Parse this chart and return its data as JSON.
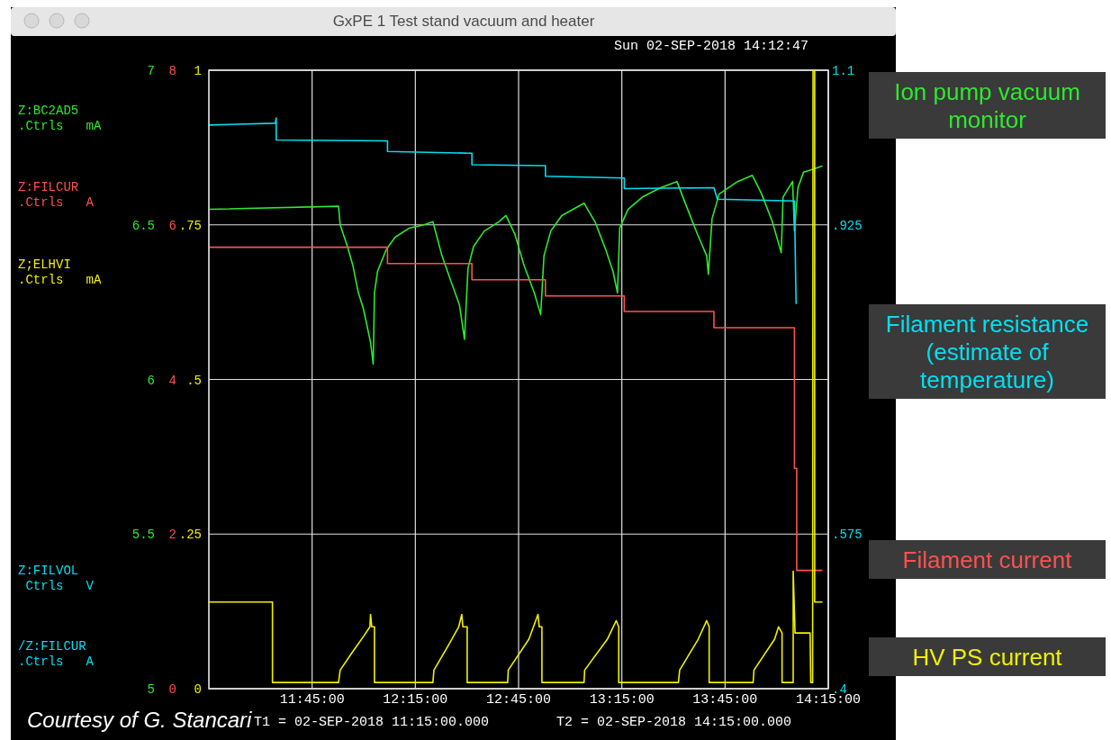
{
  "chart_data": [
    {
      "type": "line",
      "title": "GxPE 1 Test stand vacuum and heater",
      "xlim": [
        11.25,
        14.25
      ],
      "xticks": [
        {
          "value": 11.75,
          "label": "11:45:00"
        },
        {
          "value": 12.25,
          "label": "12:15:00"
        },
        {
          "value": 12.75,
          "label": "12:45:00"
        },
        {
          "value": 13.25,
          "label": "13:15:00"
        },
        {
          "value": 13.75,
          "label": "13:45:00"
        },
        {
          "value": 14.25,
          "label": "14:15:00"
        }
      ],
      "ylim": [
        5,
        7
      ],
      "yticks": [
        5,
        5.5,
        6,
        6.5,
        7
      ],
      "ylabel": "Z:BC2AD5\n.Ctrls   mA",
      "y2lim": [
        0.4,
        1.1
      ],
      "y2ticks": [
        {
          "value": 0.4,
          "label": ".4"
        },
        {
          "value": 0.575,
          "label": ".575"
        },
        {
          "value": 0.925,
          "label": ".925"
        },
        {
          "value": 1.1,
          "label": "1.1"
        }
      ],
      "y2label": "Z:FILVOL\n Ctrls   V\n/Z:FILCUR\n.Ctrls   A",
      "y3lim": [
        0,
        8
      ],
      "y3ticks": [
        0,
        2,
        4,
        6,
        8
      ],
      "y3label": "Z:FILCUR\n.Ctrls   A",
      "grid": true,
      "legend": "right",
      "annotations": [
        "Sun 02-SEP-2018 14:12:47",
        "T1 = 02-SEP-2018 11:15:00.000",
        "T2 = 02-SEP-2018 14:15:00.000",
        "Courtesy of G. Stancari"
      ],
      "series": [
        {
          "name": "Ion pump vacuum monitor",
          "color": "#2ee82e",
          "x": [
            11.25,
            11.878,
            11.886,
            11.921,
            11.947,
            11.974,
            11.998,
            12.033,
            12.046,
            12.052,
            12.067,
            12.109,
            12.152,
            12.222,
            12.292,
            12.335,
            12.379,
            12.421,
            12.464,
            12.488,
            12.505,
            12.532,
            12.584,
            12.654,
            12.689,
            12.732,
            12.776,
            12.826,
            12.857,
            12.873,
            12.906,
            12.959,
            13.014,
            13.067,
            13.12,
            13.172,
            13.207,
            13.229,
            13.24,
            13.28,
            13.35,
            13.438,
            13.517,
            13.563,
            13.616,
            13.661,
            13.669,
            13.687,
            13.722,
            13.811,
            13.882,
            13.927,
            13.979,
            14.022,
            14.031,
            14.077,
            14.086,
            14.103,
            14.13,
            14.176,
            14.219
          ],
          "values": [
            6.55,
            6.56,
            6.5,
            6.43,
            6.37,
            6.28,
            6.23,
            6.12,
            6.05,
            6.28,
            6.35,
            6.42,
            6.46,
            6.49,
            6.5,
            6.51,
            6.4,
            6.32,
            6.24,
            6.13,
            6.36,
            6.43,
            6.48,
            6.51,
            6.53,
            6.47,
            6.37,
            6.28,
            6.21,
            6.4,
            6.48,
            6.53,
            6.55,
            6.57,
            6.51,
            6.42,
            6.35,
            6.28,
            6.49,
            6.55,
            6.59,
            6.62,
            6.64,
            6.56,
            6.47,
            6.4,
            6.34,
            6.52,
            6.6,
            6.64,
            6.66,
            6.6,
            6.51,
            6.41,
            6.59,
            6.64,
            6.48,
            6.62,
            6.67,
            6.68,
            6.69
          ]
        },
        {
          "name": "Filament resistance (estimate of temperature)",
          "color": "#00e0f0",
          "axis": "y2",
          "x": [
            11.25,
            11.572,
            11.576,
            11.576,
            12.115,
            12.115,
            12.524,
            12.524,
            12.88,
            12.88,
            13.262,
            13.262,
            13.696,
            13.713,
            14.086,
            14.094
          ],
          "values": [
            1.038,
            1.04,
            1.046,
            1.021,
            1.02,
            1.008,
            1.006,
            0.993,
            0.992,
            0.98,
            0.978,
            0.966,
            0.967,
            0.954,
            0.952,
            0.836
          ]
        },
        {
          "name": "Filament current",
          "color": "#ff5050",
          "axis": "y3",
          "x": [
            11.25,
            12.115,
            12.115,
            12.524,
            12.524,
            12.88,
            12.88,
            13.262,
            13.262,
            13.696,
            13.696,
            14.086,
            14.086,
            14.097,
            14.097,
            14.219
          ],
          "values": [
            5.71,
            5.71,
            5.5,
            5.5,
            5.29,
            5.29,
            5.08,
            5.08,
            4.88,
            4.88,
            4.67,
            4.67,
            2.85,
            2.85,
            1.53,
            1.53
          ]
        }
      ]
    },
    {
      "type": "line",
      "xlim": [
        11.25,
        14.25
      ],
      "ylim": [
        0,
        1
      ],
      "yticks": [
        0,
        {
          "value": 0.25,
          "label": ".25"
        },
        {
          "value": 0.5,
          "label": ".5"
        },
        {
          "value": 0.75,
          "label": ".75"
        },
        1
      ],
      "ylabel": "Z;ELHVI\n.Ctrls   mA",
      "tick_labels": "y",
      "legend": "right",
      "series": [
        {
          "name": "HV PS current",
          "color": "#f0f000",
          "x": [
            11.25,
            11.558,
            11.558,
            11.878,
            11.886,
            11.947,
            12.0,
            12.03,
            12.033,
            12.039,
            12.052,
            12.052,
            12.335,
            12.34,
            12.41,
            12.46,
            12.475,
            12.48,
            12.501,
            12.501,
            12.697,
            12.7,
            12.8,
            12.844,
            12.85,
            12.863,
            12.863,
            13.067,
            13.07,
            13.18,
            13.223,
            13.235,
            13.235,
            13.524,
            13.53,
            13.62,
            13.661,
            13.673,
            13.673,
            13.886,
            13.89,
            13.99,
            14.009,
            14.026,
            14.026,
            14.08,
            14.08,
            14.089,
            14.162,
            14.165,
            14.174,
            14.176,
            14.184,
            14.184,
            14.219
          ],
          "values": [
            0.14,
            0.14,
            0.01,
            0.01,
            0.03,
            0.06,
            0.085,
            0.1,
            0.12,
            0.1,
            0.1,
            0.01,
            0.01,
            0.03,
            0.07,
            0.1,
            0.12,
            0.1,
            0.1,
            0.01,
            0.01,
            0.03,
            0.08,
            0.12,
            0.1,
            0.1,
            0.01,
            0.01,
            0.03,
            0.08,
            0.11,
            0.1,
            0.01,
            0.01,
            0.03,
            0.08,
            0.11,
            0.1,
            0.01,
            0.01,
            0.03,
            0.08,
            0.1,
            0.09,
            0.01,
            0.01,
            0.19,
            0.09,
            0.09,
            0.01,
            0.01,
            1.0,
            1.0,
            0.14,
            0.14
          ]
        }
      ]
    }
  ]
}
